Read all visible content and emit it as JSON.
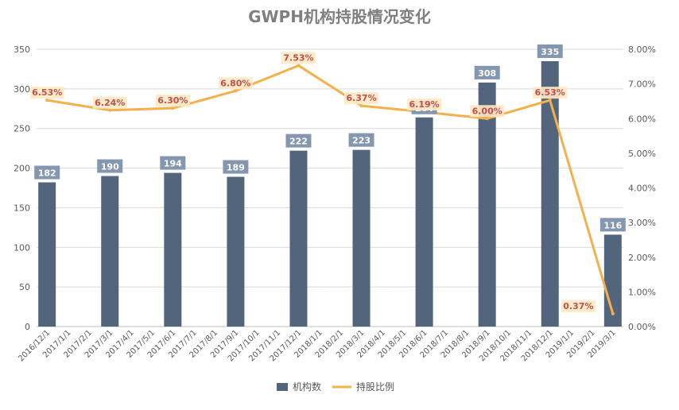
{
  "chart_data": {
    "type": "bar",
    "title": "GWPH机构持股情况变化",
    "categories": [
      "2016/12/1",
      "2017/1/1",
      "2017/2/1",
      "2017/3/1",
      "2017/4/1",
      "2017/5/1",
      "2017/6/1",
      "2017/7/1",
      "2017/8/1",
      "2017/9/1",
      "2017/10/1",
      "2017/11/1",
      "2017/12/1",
      "2018/1/1",
      "2018/2/1",
      "2018/3/1",
      "2018/4/1",
      "2018/5/1",
      "2018/6/1",
      "2018/7/1",
      "2018/8/1",
      "2018/9/1",
      "2018/10/1",
      "2018/11/1",
      "2018/12/1",
      "2019/1/1",
      "2019/2/1",
      "2019/3/1"
    ],
    "series": [
      {
        "name": "机构数",
        "type": "bar",
        "axis": "left",
        "color": "#53657d",
        "values": [
          182,
          null,
          null,
          190,
          null,
          null,
          194,
          null,
          null,
          189,
          null,
          null,
          222,
          null,
          null,
          223,
          null,
          null,
          264,
          null,
          null,
          308,
          null,
          null,
          335,
          null,
          null,
          116
        ]
      },
      {
        "name": "持股比例",
        "type": "line",
        "axis": "right",
        "color": "#f5b04b",
        "values": [
          6.53,
          null,
          null,
          6.24,
          null,
          null,
          6.3,
          null,
          null,
          6.8,
          null,
          null,
          7.53,
          null,
          null,
          6.37,
          null,
          null,
          6.19,
          null,
          null,
          6.0,
          null,
          null,
          6.53,
          null,
          null,
          0.37
        ]
      }
    ],
    "y_left": {
      "range": [
        0,
        350
      ],
      "ticks": [
        "0",
        "50",
        "100",
        "150",
        "200",
        "250",
        "300",
        "350"
      ]
    },
    "y_right": {
      "range": [
        0,
        8
      ],
      "ticks": [
        "0.00%",
        "1.00%",
        "2.00%",
        "3.00%",
        "4.00%",
        "5.00%",
        "6.00%",
        "7.00%",
        "8.00%"
      ]
    },
    "bar_labels": [
      "182",
      "190",
      "194",
      "189",
      "222",
      "223",
      "264",
      "308",
      "335",
      "116"
    ],
    "line_labels": [
      "6.53%",
      "6.24%",
      "6.30%",
      "6.80%",
      "7.53%",
      "6.37%",
      "6.19%",
      "6.00%",
      "6.53%",
      "0.37%"
    ],
    "grid": true,
    "legend": {
      "position": "bottom",
      "items": [
        "机构数",
        "持股比例"
      ]
    }
  }
}
